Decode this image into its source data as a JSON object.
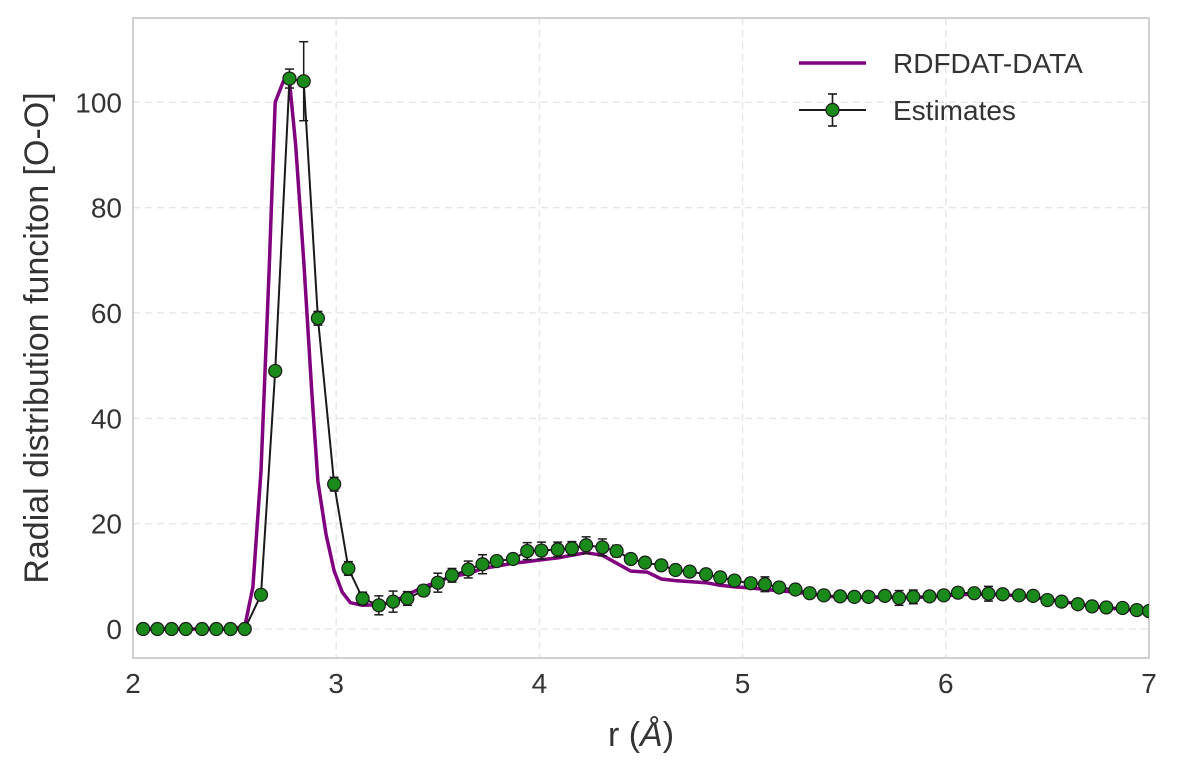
{
  "chart_data": {
    "type": "line",
    "xlabel_main": "r (",
    "xlabel_unit": "Å",
    "xlabel_close": ")",
    "ylabel": "Radial distribution funciton [O-O]",
    "xlim": [
      2,
      7
    ],
    "ylim": [
      -5.5,
      116
    ],
    "grid": true,
    "legend_position": "top-right",
    "xticks": [
      {
        "value": 2,
        "label": "2"
      },
      {
        "value": 3,
        "label": "3"
      },
      {
        "value": 4,
        "label": "4"
      },
      {
        "value": 5,
        "label": "5"
      },
      {
        "value": 6,
        "label": "6"
      },
      {
        "value": 7,
        "label": "7"
      }
    ],
    "yticks": [
      {
        "value": 0,
        "label": "0"
      },
      {
        "value": 20,
        "label": "20"
      },
      {
        "value": 40,
        "label": "40"
      },
      {
        "value": 60,
        "label": "60"
      },
      {
        "value": 80,
        "label": "80"
      },
      {
        "value": 100,
        "label": "100"
      }
    ],
    "series": [
      {
        "name": "RDFDAT-DATA",
        "kind": "line",
        "color": "#800080",
        "x": [
          2.05,
          2.12,
          2.19,
          2.26,
          2.34,
          2.41,
          2.48,
          2.55,
          2.59,
          2.63,
          2.67,
          2.7,
          2.74,
          2.77,
          2.8,
          2.84,
          2.88,
          2.91,
          2.95,
          2.99,
          3.03,
          3.07,
          3.13,
          3.2,
          3.27,
          3.35,
          3.43,
          3.5,
          3.57,
          3.65,
          3.72,
          3.8,
          3.87,
          3.94,
          4.02,
          4.09,
          4.16,
          4.23,
          4.31,
          4.38,
          4.45,
          4.53,
          4.6,
          4.67,
          4.74,
          4.82,
          4.89,
          4.96,
          5.04,
          5.11,
          5.18,
          5.26,
          5.33,
          5.4,
          5.48,
          5.55,
          5.62,
          5.7,
          5.77,
          5.84,
          5.92,
          5.99,
          6.06,
          6.14,
          6.21,
          6.28,
          6.36,
          6.43,
          6.5,
          6.57,
          6.65,
          6.72,
          6.79,
          6.86,
          6.94,
          7.0
        ],
        "y": [
          0,
          0,
          0,
          0,
          0,
          0,
          0,
          0.5,
          8,
          30,
          68,
          100,
          104,
          104,
          92,
          70,
          45,
          28,
          18,
          11,
          7,
          5,
          4.5,
          4.6,
          5,
          6.5,
          8,
          9,
          10,
          10.5,
          11.5,
          12,
          12.5,
          12.8,
          13.2,
          13.5,
          14,
          14.5,
          14,
          12.5,
          11,
          10.8,
          9.5,
          9.2,
          9,
          8.8,
          8.3,
          8,
          7.8,
          7.5,
          7.3,
          7,
          6.7,
          6.3,
          6,
          6,
          6,
          6,
          6,
          6,
          6.1,
          6.3,
          6.5,
          6.6,
          6.6,
          6.5,
          6.3,
          6,
          5.7,
          5.2,
          4.8,
          4.3,
          4,
          3.8,
          3.5,
          3.3
        ]
      },
      {
        "name": "Estimates",
        "kind": "errorbar",
        "line_color": "#1a1a1a",
        "marker_color": "#1a8a1a",
        "x": [
          2.05,
          2.12,
          2.19,
          2.26,
          2.34,
          2.41,
          2.48,
          2.55,
          2.63,
          2.7,
          2.77,
          2.84,
          2.91,
          2.99,
          3.06,
          3.13,
          3.21,
          3.28,
          3.35,
          3.43,
          3.5,
          3.57,
          3.65,
          3.72,
          3.79,
          3.87,
          3.94,
          4.01,
          4.09,
          4.16,
          4.23,
          4.31,
          4.38,
          4.45,
          4.52,
          4.6,
          4.67,
          4.74,
          4.82,
          4.89,
          4.96,
          5.04,
          5.11,
          5.18,
          5.26,
          5.33,
          5.4,
          5.48,
          5.55,
          5.62,
          5.7,
          5.77,
          5.84,
          5.92,
          5.99,
          6.06,
          6.14,
          6.21,
          6.28,
          6.36,
          6.43,
          6.5,
          6.57,
          6.65,
          6.72,
          6.79,
          6.87,
          6.94,
          7.0
        ],
        "y": [
          0,
          0,
          0,
          0,
          0,
          0,
          0,
          0,
          6.5,
          49,
          104.5,
          104,
          59,
          27.5,
          11.5,
          5.8,
          4.5,
          5.2,
          5.8,
          7.3,
          8.8,
          10.2,
          11.3,
          12.3,
          12.9,
          13.3,
          14.8,
          14.9,
          15.1,
          15.3,
          15.9,
          15.5,
          14.8,
          13.3,
          12.6,
          12.1,
          11.2,
          10.9,
          10.4,
          9.8,
          9.2,
          8.7,
          8.5,
          7.9,
          7.5,
          6.8,
          6.4,
          6.2,
          6.1,
          6.1,
          6.3,
          5.9,
          6.1,
          6.2,
          6.4,
          6.9,
          6.8,
          6.7,
          6.6,
          6.4,
          6.3,
          5.5,
          5.2,
          4.7,
          4.3,
          4.1,
          4.0,
          3.6,
          3.4
        ],
        "err": [
          0,
          0,
          0,
          0,
          0,
          0,
          0,
          0,
          0.8,
          0.6,
          1.8,
          7.5,
          1.3,
          1.3,
          1.3,
          1.2,
          1.8,
          2.0,
          1.3,
          1.0,
          1.8,
          1.3,
          1.6,
          1.8,
          0.9,
          0.9,
          1.6,
          1.6,
          1.4,
          1.3,
          1.6,
          1.6,
          1.1,
          0.9,
          0.8,
          0.9,
          0.8,
          0.8,
          0.8,
          0.8,
          0.7,
          0.8,
          1.4,
          0.8,
          0.8,
          0.6,
          0.6,
          0.6,
          0.6,
          0.6,
          0.6,
          1.4,
          1.3,
          0.6,
          0.6,
          0.7,
          0.7,
          1.4,
          0.8,
          0.7,
          0.7,
          0.7,
          0.7,
          0.6,
          0.6,
          0.6,
          0.6,
          0.6,
          0.6
        ]
      }
    ]
  }
}
